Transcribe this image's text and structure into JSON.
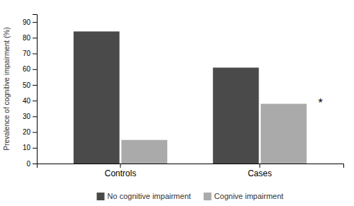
{
  "chart_data": {
    "type": "bar",
    "categories": [
      "Controls",
      "Cases"
    ],
    "series": [
      {
        "name": "No cognitive impairment",
        "color": "#4a4a4a",
        "values": [
          84,
          61
        ]
      },
      {
        "name": "Cognive impairment",
        "color": "#aaaaaa",
        "values": [
          15,
          38
        ]
      }
    ],
    "y_label": "Prevalence of cognitive impairment (%)",
    "ylim": [
      0,
      95
    ],
    "yticks": [
      0,
      10,
      20,
      30,
      40,
      50,
      60,
      70,
      80,
      90
    ],
    "annotations": [
      {
        "text": "*",
        "x": "Cases",
        "y": 38
      }
    ],
    "legend": "bottom",
    "grid": false
  }
}
